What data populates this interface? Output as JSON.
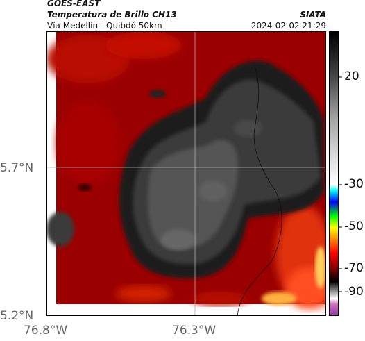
{
  "header": {
    "satellite": "GOES-EAST",
    "product": "Temperatura de Brillo CH13",
    "region": "Vía Medellín - Quibdó 50km",
    "agency": "SIATA",
    "datetime": "2024-02-02 21:29"
  },
  "map": {
    "lat_ticks": [
      "5.7°N",
      "5.2°N"
    ],
    "lon_ticks": [
      "76.8°W",
      "76.3°W"
    ],
    "gridlines": true
  },
  "colorbar": {
    "ticks": [
      "20",
      "-30",
      "-50",
      "-70",
      "-90"
    ],
    "palette": [
      "#8a3a9a",
      "#d070c0",
      "#ffffff",
      "#808080",
      "#000000",
      "#8b0000",
      "#ff0000",
      "#ff8c00",
      "#ffff00",
      "#00ff00",
      "#0000ff",
      "#00ffff",
      "#ffffff",
      "#ffffff",
      "#a0a0a0",
      "#404040",
      "#000000"
    ]
  },
  "colors": {
    "cloud_core": "#4a4a4a",
    "cloud_edge": "#222222",
    "warm_surface": "#8b0000",
    "hot_surface": "#ff3a10"
  }
}
